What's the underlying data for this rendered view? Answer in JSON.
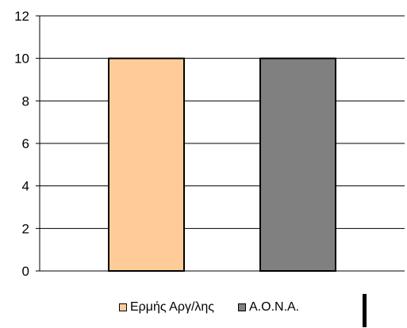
{
  "chart_data": {
    "type": "bar",
    "categories": [
      ""
    ],
    "series": [
      {
        "name": "Ερμής Αργ/λης",
        "values": [
          10
        ],
        "color": "#FFCC99"
      },
      {
        "name": "Α.Ο.Ν.Α.",
        "values": [
          10
        ],
        "color": "#808080"
      }
    ],
    "title": "",
    "xlabel": "",
    "ylabel": "",
    "ylim": [
      0,
      12
    ],
    "yticks": [
      0,
      2,
      4,
      6,
      8,
      10,
      12
    ],
    "grid": true,
    "legend_position": "bottom"
  }
}
